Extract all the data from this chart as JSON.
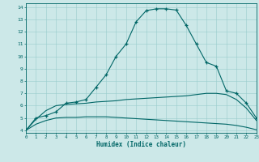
{
  "xlabel": "Humidex (Indice chaleur)",
  "bg_color": "#cce8e8",
  "grid_color": "#99cccc",
  "line_color": "#006666",
  "xlim": [
    0,
    23
  ],
  "ylim": [
    3.8,
    14.3
  ],
  "xticks": [
    0,
    1,
    2,
    3,
    4,
    5,
    6,
    7,
    8,
    9,
    10,
    11,
    12,
    13,
    14,
    15,
    16,
    17,
    18,
    19,
    20,
    21,
    22,
    23
  ],
  "yticks": [
    4,
    5,
    6,
    7,
    8,
    9,
    10,
    11,
    12,
    13,
    14
  ],
  "curve1_x": [
    0,
    1,
    2,
    3,
    4,
    5,
    6,
    7,
    8,
    9,
    10,
    11,
    12,
    13,
    14,
    15,
    16,
    17,
    18,
    19,
    20,
    21,
    22,
    23
  ],
  "curve1_y": [
    4.0,
    5.0,
    5.2,
    5.5,
    6.2,
    6.3,
    6.5,
    7.5,
    8.5,
    10.0,
    11.0,
    12.8,
    13.7,
    13.85,
    13.85,
    13.75,
    12.5,
    11.0,
    9.5,
    9.2,
    7.2,
    7.0,
    6.2,
    5.0
  ],
  "curve2_x": [
    0,
    1,
    2,
    3,
    4,
    5,
    6,
    7,
    8,
    9,
    10,
    11,
    12,
    13,
    14,
    15,
    16,
    17,
    18,
    19,
    20,
    21,
    22,
    23
  ],
  "curve2_y": [
    4.0,
    4.9,
    5.6,
    6.0,
    6.1,
    6.15,
    6.2,
    6.3,
    6.35,
    6.4,
    6.5,
    6.55,
    6.6,
    6.65,
    6.7,
    6.75,
    6.8,
    6.9,
    7.0,
    7.0,
    6.9,
    6.5,
    5.8,
    4.8
  ],
  "curve3_x": [
    0,
    1,
    2,
    3,
    4,
    5,
    6,
    7,
    8,
    9,
    10,
    11,
    12,
    13,
    14,
    15,
    16,
    17,
    18,
    19,
    20,
    21,
    22,
    23
  ],
  "curve3_y": [
    4.0,
    4.5,
    4.8,
    5.0,
    5.05,
    5.05,
    5.1,
    5.1,
    5.1,
    5.05,
    5.0,
    4.95,
    4.9,
    4.85,
    4.8,
    4.75,
    4.7,
    4.65,
    4.6,
    4.55,
    4.5,
    4.4,
    4.25,
    4.05
  ],
  "marker_x1": [
    1,
    2,
    3,
    4,
    5,
    6,
    7,
    8,
    9,
    10,
    11,
    12,
    13,
    14,
    15,
    16,
    17,
    18,
    19,
    20,
    21,
    22,
    23
  ],
  "marker_y1": [
    5.0,
    5.2,
    5.5,
    6.2,
    6.3,
    6.5,
    7.5,
    8.5,
    10.0,
    11.0,
    12.8,
    13.7,
    13.85,
    13.85,
    13.75,
    12.5,
    11.0,
    9.5,
    9.2,
    7.2,
    7.0,
    6.2,
    5.0
  ]
}
